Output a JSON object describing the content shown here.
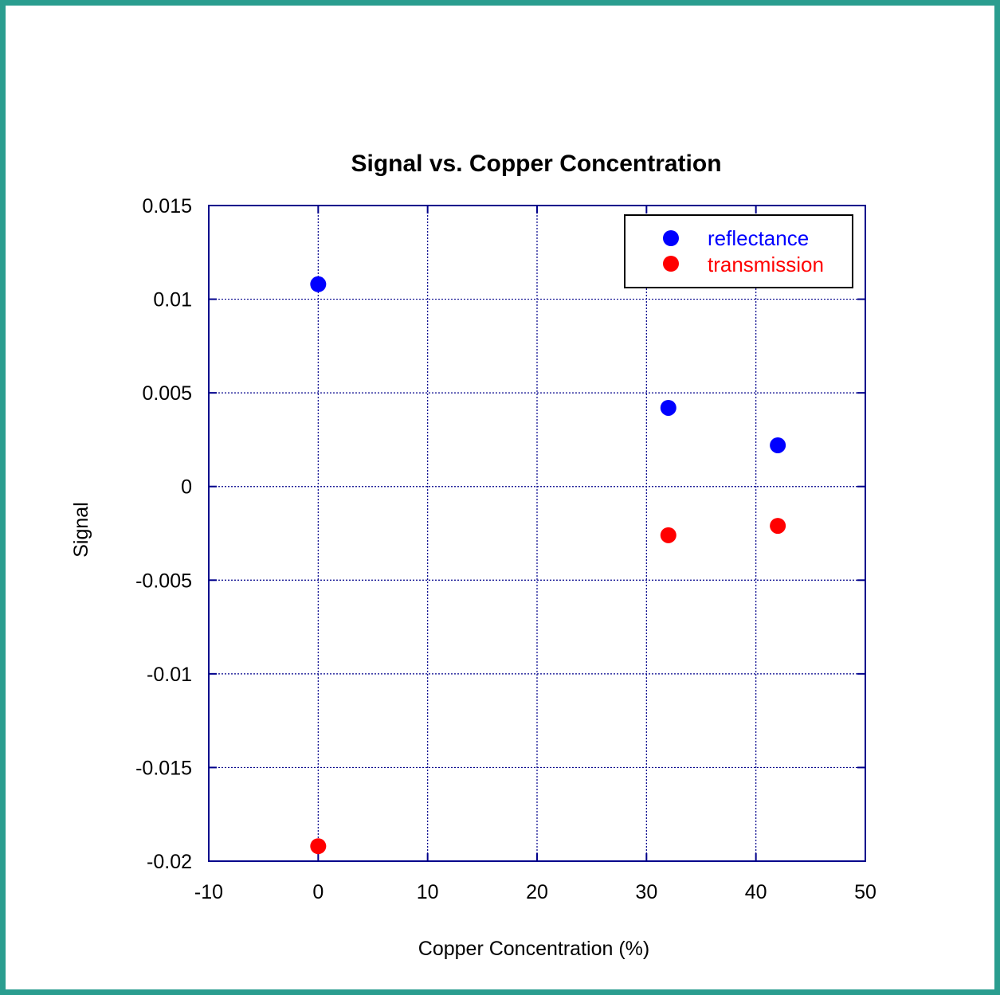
{
  "chart_data": {
    "type": "scatter",
    "title": "Signal vs. Copper Concentration",
    "xlabel": "Copper Concentration (%)",
    "ylabel": "Signal",
    "xlim": [
      -10,
      50
    ],
    "ylim": [
      -0.02,
      0.015
    ],
    "xticks": [
      -10,
      0,
      10,
      20,
      30,
      40,
      50
    ],
    "xtick_labels": [
      "-10",
      "0",
      "10",
      "20",
      "30",
      "40",
      "50"
    ],
    "yticks": [
      0.015,
      0.01,
      0.005,
      0,
      -0.005,
      -0.01,
      -0.015,
      -0.02
    ],
    "ytick_labels": [
      "0.015",
      "0.01",
      "0.005",
      "0",
      "-0.005",
      "-0.01",
      "-0.015",
      "-0.02"
    ],
    "grid": true,
    "legend_position": "top-right",
    "series": [
      {
        "name": "reflectance",
        "color": "#0000ff",
        "points": [
          {
            "x": 0,
            "y": 0.0108
          },
          {
            "x": 32,
            "y": 0.0042
          },
          {
            "x": 42,
            "y": 0.0022
          }
        ]
      },
      {
        "name": "transmission",
        "color": "#ff0000",
        "points": [
          {
            "x": 0,
            "y": -0.0192
          },
          {
            "x": 32,
            "y": -0.0026
          },
          {
            "x": 42,
            "y": -0.0021
          }
        ]
      }
    ]
  }
}
